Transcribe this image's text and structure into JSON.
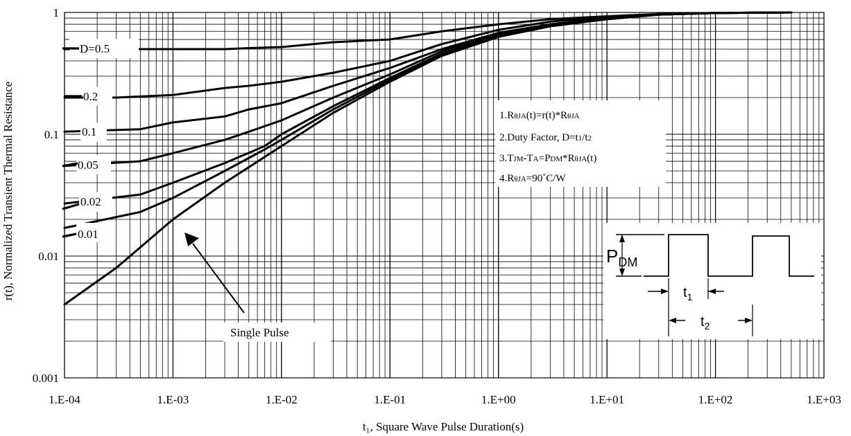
{
  "chart_data": {
    "type": "line",
    "x_scale": "log",
    "y_scale": "log",
    "xlim": [
      0.0001,
      1000
    ],
    "ylim": [
      0.001,
      1
    ],
    "grid": true,
    "xlabel": "t₁, Square Wave Pulse Duration(s)",
    "ylabel": "r(t), Normalized Transient Thermal Resistance",
    "x_tick_labels": [
      "1.E-04",
      "1.E-03",
      "1.E-02",
      "1.E-01",
      "1.E+00",
      "1.E+01",
      "1.E+02",
      "1.E+03"
    ],
    "y_tick_labels": [
      "0.001",
      "0.01",
      "0.1",
      "1"
    ],
    "series": [
      {
        "name": "D=0.5",
        "points": [
          [
            0.0001,
            0.5
          ],
          [
            0.0003,
            0.5
          ],
          [
            0.001,
            0.5
          ],
          [
            0.003,
            0.5
          ],
          [
            0.005,
            0.51
          ],
          [
            0.01,
            0.52
          ],
          [
            0.03,
            0.57
          ],
          [
            0.1,
            0.6
          ],
          [
            0.3,
            0.7
          ],
          [
            1,
            0.8
          ],
          [
            3,
            0.88
          ],
          [
            10,
            0.93
          ],
          [
            30,
            0.97
          ],
          [
            100,
            0.99
          ],
          [
            500,
            1.0
          ]
        ]
      },
      {
        "name": "0.2",
        "points": [
          [
            0.0001,
            0.2
          ],
          [
            0.0003,
            0.2
          ],
          [
            0.001,
            0.21
          ],
          [
            0.003,
            0.24
          ],
          [
            0.005,
            0.25
          ],
          [
            0.01,
            0.27
          ],
          [
            0.03,
            0.32
          ],
          [
            0.1,
            0.4
          ],
          [
            0.3,
            0.55
          ],
          [
            1,
            0.72
          ],
          [
            3,
            0.84
          ],
          [
            10,
            0.92
          ],
          [
            30,
            0.97
          ],
          [
            100,
            0.99
          ],
          [
            500,
            1.0
          ]
        ]
      },
      {
        "name": "0.1",
        "points": [
          [
            0.0001,
            0.105
          ],
          [
            0.0005,
            0.11
          ],
          [
            0.001,
            0.125
          ],
          [
            0.003,
            0.14
          ],
          [
            0.005,
            0.16
          ],
          [
            0.01,
            0.18
          ],
          [
            0.03,
            0.25
          ],
          [
            0.1,
            0.35
          ],
          [
            0.3,
            0.5
          ],
          [
            1,
            0.68
          ],
          [
            3,
            0.8
          ],
          [
            10,
            0.9
          ],
          [
            30,
            0.96
          ],
          [
            100,
            0.99
          ],
          [
            500,
            1.0
          ]
        ]
      },
      {
        "name": "0.05",
        "points": [
          [
            0.0001,
            0.055
          ],
          [
            0.0005,
            0.06
          ],
          [
            0.001,
            0.07
          ],
          [
            0.003,
            0.09
          ],
          [
            0.005,
            0.105
          ],
          [
            0.01,
            0.13
          ],
          [
            0.03,
            0.2
          ],
          [
            0.1,
            0.31
          ],
          [
            0.3,
            0.48
          ],
          [
            1,
            0.66
          ],
          [
            3,
            0.79
          ],
          [
            10,
            0.89
          ],
          [
            30,
            0.96
          ],
          [
            100,
            0.99
          ],
          [
            500,
            1.0
          ]
        ]
      },
      {
        "name": "0.02",
        "points": [
          [
            0.0001,
            0.027
          ],
          [
            0.0005,
            0.032
          ],
          [
            0.001,
            0.04
          ],
          [
            0.003,
            0.058
          ],
          [
            0.007,
            0.08
          ],
          [
            0.01,
            0.1
          ],
          [
            0.03,
            0.17
          ],
          [
            0.1,
            0.29
          ],
          [
            0.3,
            0.46
          ],
          [
            1,
            0.65
          ],
          [
            3,
            0.78
          ],
          [
            10,
            0.88
          ],
          [
            30,
            0.96
          ],
          [
            100,
            0.99
          ],
          [
            500,
            1.0
          ]
        ]
      },
      {
        "name": "0.01",
        "points": [
          [
            0.0001,
            0.017
          ],
          [
            0.0005,
            0.023
          ],
          [
            0.001,
            0.03
          ],
          [
            0.003,
            0.05
          ],
          [
            0.007,
            0.075
          ],
          [
            0.01,
            0.09
          ],
          [
            0.03,
            0.16
          ],
          [
            0.1,
            0.28
          ],
          [
            0.3,
            0.45
          ],
          [
            1,
            0.64
          ],
          [
            3,
            0.78
          ],
          [
            10,
            0.88
          ],
          [
            30,
            0.96
          ],
          [
            100,
            0.99
          ],
          [
            500,
            1.0
          ]
        ]
      },
      {
        "name": "Single Pulse",
        "points": [
          [
            0.0001,
            0.004
          ],
          [
            0.0003,
            0.008
          ],
          [
            0.001,
            0.02
          ],
          [
            0.003,
            0.04
          ],
          [
            0.01,
            0.08
          ],
          [
            0.03,
            0.15
          ],
          [
            0.1,
            0.27
          ],
          [
            0.3,
            0.44
          ],
          [
            1,
            0.63
          ],
          [
            3,
            0.77
          ],
          [
            10,
            0.88
          ],
          [
            30,
            0.96
          ],
          [
            100,
            0.99
          ],
          [
            500,
            1.0
          ]
        ]
      }
    ],
    "labels": [
      "D=0.5",
      "0.2",
      "0.1",
      "0.05",
      "0.02",
      "0.01",
      "Single Pulse"
    ],
    "notes": [
      {
        "prefix": "1.R",
        "sub1": "θJA",
        "mid": "(t)=r(t)*R",
        "sub2": "θJA",
        "suffix": ""
      },
      {
        "prefix": "2.Duty Factor, D=t",
        "sub1": "1",
        "mid": "/t",
        "sub2": "2",
        "suffix": ""
      },
      {
        "prefix": "3.T",
        "sub1": "JM",
        "mid": "-T",
        "sub2": "A",
        "suffix": "=P",
        "sub3": "DM",
        "tail": "*R",
        "sub4": "θJA",
        "end": "(t)"
      },
      {
        "prefix": "4.R",
        "sub1": "θJA",
        "mid": "=90˚C/W",
        "sub2": "",
        "suffix": ""
      }
    ],
    "pulse_diagram": {
      "p_label": "P",
      "p_sub": "DM",
      "t1_label": "t",
      "t1_sub": "1",
      "t2_label": "t",
      "t2_sub": "2"
    }
  }
}
